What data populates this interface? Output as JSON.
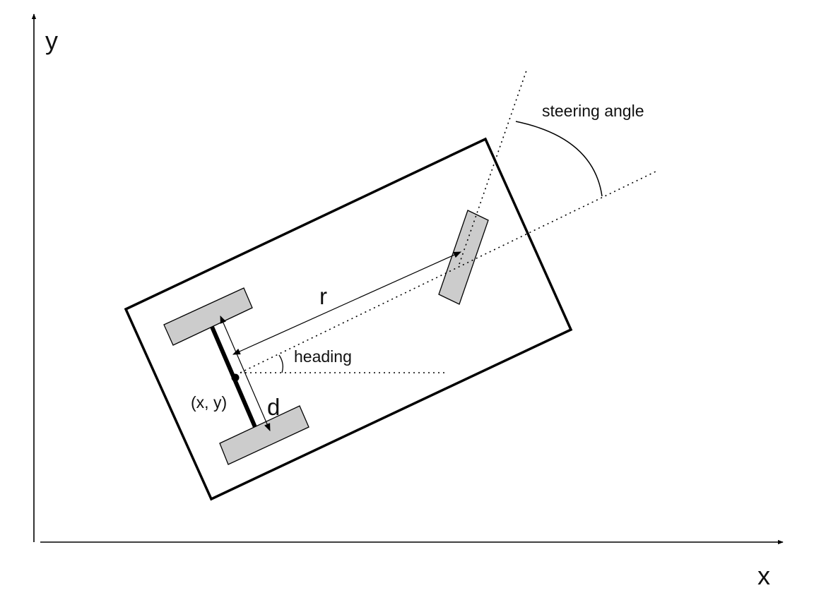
{
  "labels": {
    "y_axis": "y",
    "x_axis": "x",
    "steering_angle": "steering angle",
    "r": "r",
    "heading": "heading",
    "position": "(x, y)",
    "d": "d"
  }
}
